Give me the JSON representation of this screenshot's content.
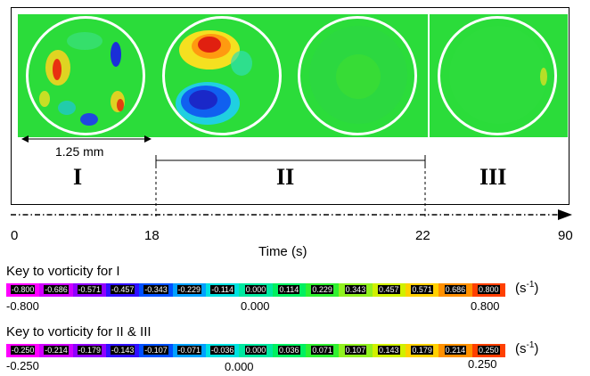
{
  "scale_bar": {
    "label": "1.25 mm"
  },
  "phases": [
    {
      "label": "I"
    },
    {
      "label": "II"
    },
    {
      "label": "III"
    }
  ],
  "timeline": {
    "ticks": [
      "0",
      "18",
      "22",
      "90"
    ],
    "axis_label": "Time (s)"
  },
  "key1": {
    "title": "Key to vorticity for I",
    "cells": [
      "-0.800",
      "-0.686",
      "-0.571",
      "-0.457",
      "-0.343",
      "-0.229",
      "-0.114",
      "0.000",
      "0.114",
      "0.229",
      "0.343",
      "0.457",
      "0.571",
      "0.686",
      "0.800"
    ],
    "unit_base": "(s",
    "unit_exp": "-1",
    "unit_close": ")",
    "min": "-0.800",
    "mid": "0.000",
    "max": "0.800"
  },
  "key2": {
    "title": "Key to vorticity for II & III",
    "cells": [
      "-0.250",
      "-0.214",
      "-0.179",
      "-0.143",
      "-0.107",
      "-0.071",
      "-0.036",
      "0.000",
      "0.036",
      "0.071",
      "0.107",
      "0.143",
      "0.179",
      "0.214",
      "0.250"
    ],
    "unit_base": "(s",
    "unit_exp": "-1",
    "unit_close": ")",
    "min": "-0.250",
    "mid": "0.000",
    "max": "0.250"
  },
  "colors": {
    "scale": [
      "#ff00ff",
      "#d000ff",
      "#9000ff",
      "#3010ff",
      "#0050ff",
      "#00a0ff",
      "#00e0e0",
      "#00e8a0",
      "#00f060",
      "#30f030",
      "#90f020",
      "#d0f000",
      "#ffd000",
      "#ff9000",
      "#ff4000"
    ],
    "field_green": "#2bdc3a"
  }
}
